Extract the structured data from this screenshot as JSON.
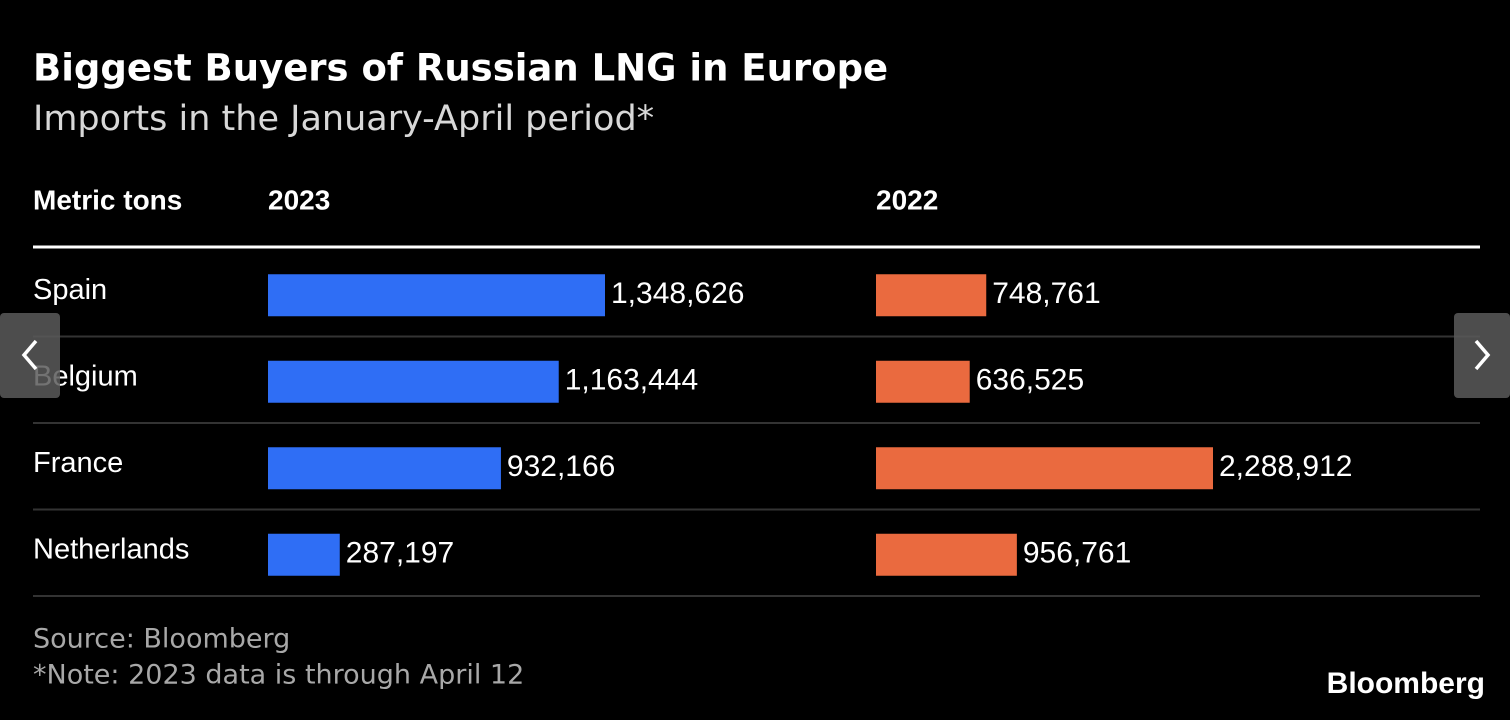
{
  "chart_data": {
    "type": "bar",
    "title": "Biggest Buyers of Russian LNG in Europe",
    "subtitle": "Imports in the January-April period*",
    "row_header": "Metric tons",
    "categories": [
      "Spain",
      "Belgium",
      "France",
      "Netherlands"
    ],
    "series": [
      {
        "name": "2023",
        "color": "#2f6ef5",
        "values": [
          1348626,
          1163444,
          932166,
          287197
        ],
        "value_labels": [
          "1,348,626",
          "1,163,444",
          "932,166",
          "287,197"
        ]
      },
      {
        "name": "2022",
        "color": "#ea6a3f",
        "values": [
          748761,
          636525,
          2288912,
          956761
        ],
        "value_labels": [
          "748,761",
          "636,525",
          "2,288,912",
          "956,761"
        ]
      }
    ],
    "source": "Source: Bloomberg",
    "note": "*Note: 2023 data is through April 12",
    "brand": "Bloomberg"
  }
}
